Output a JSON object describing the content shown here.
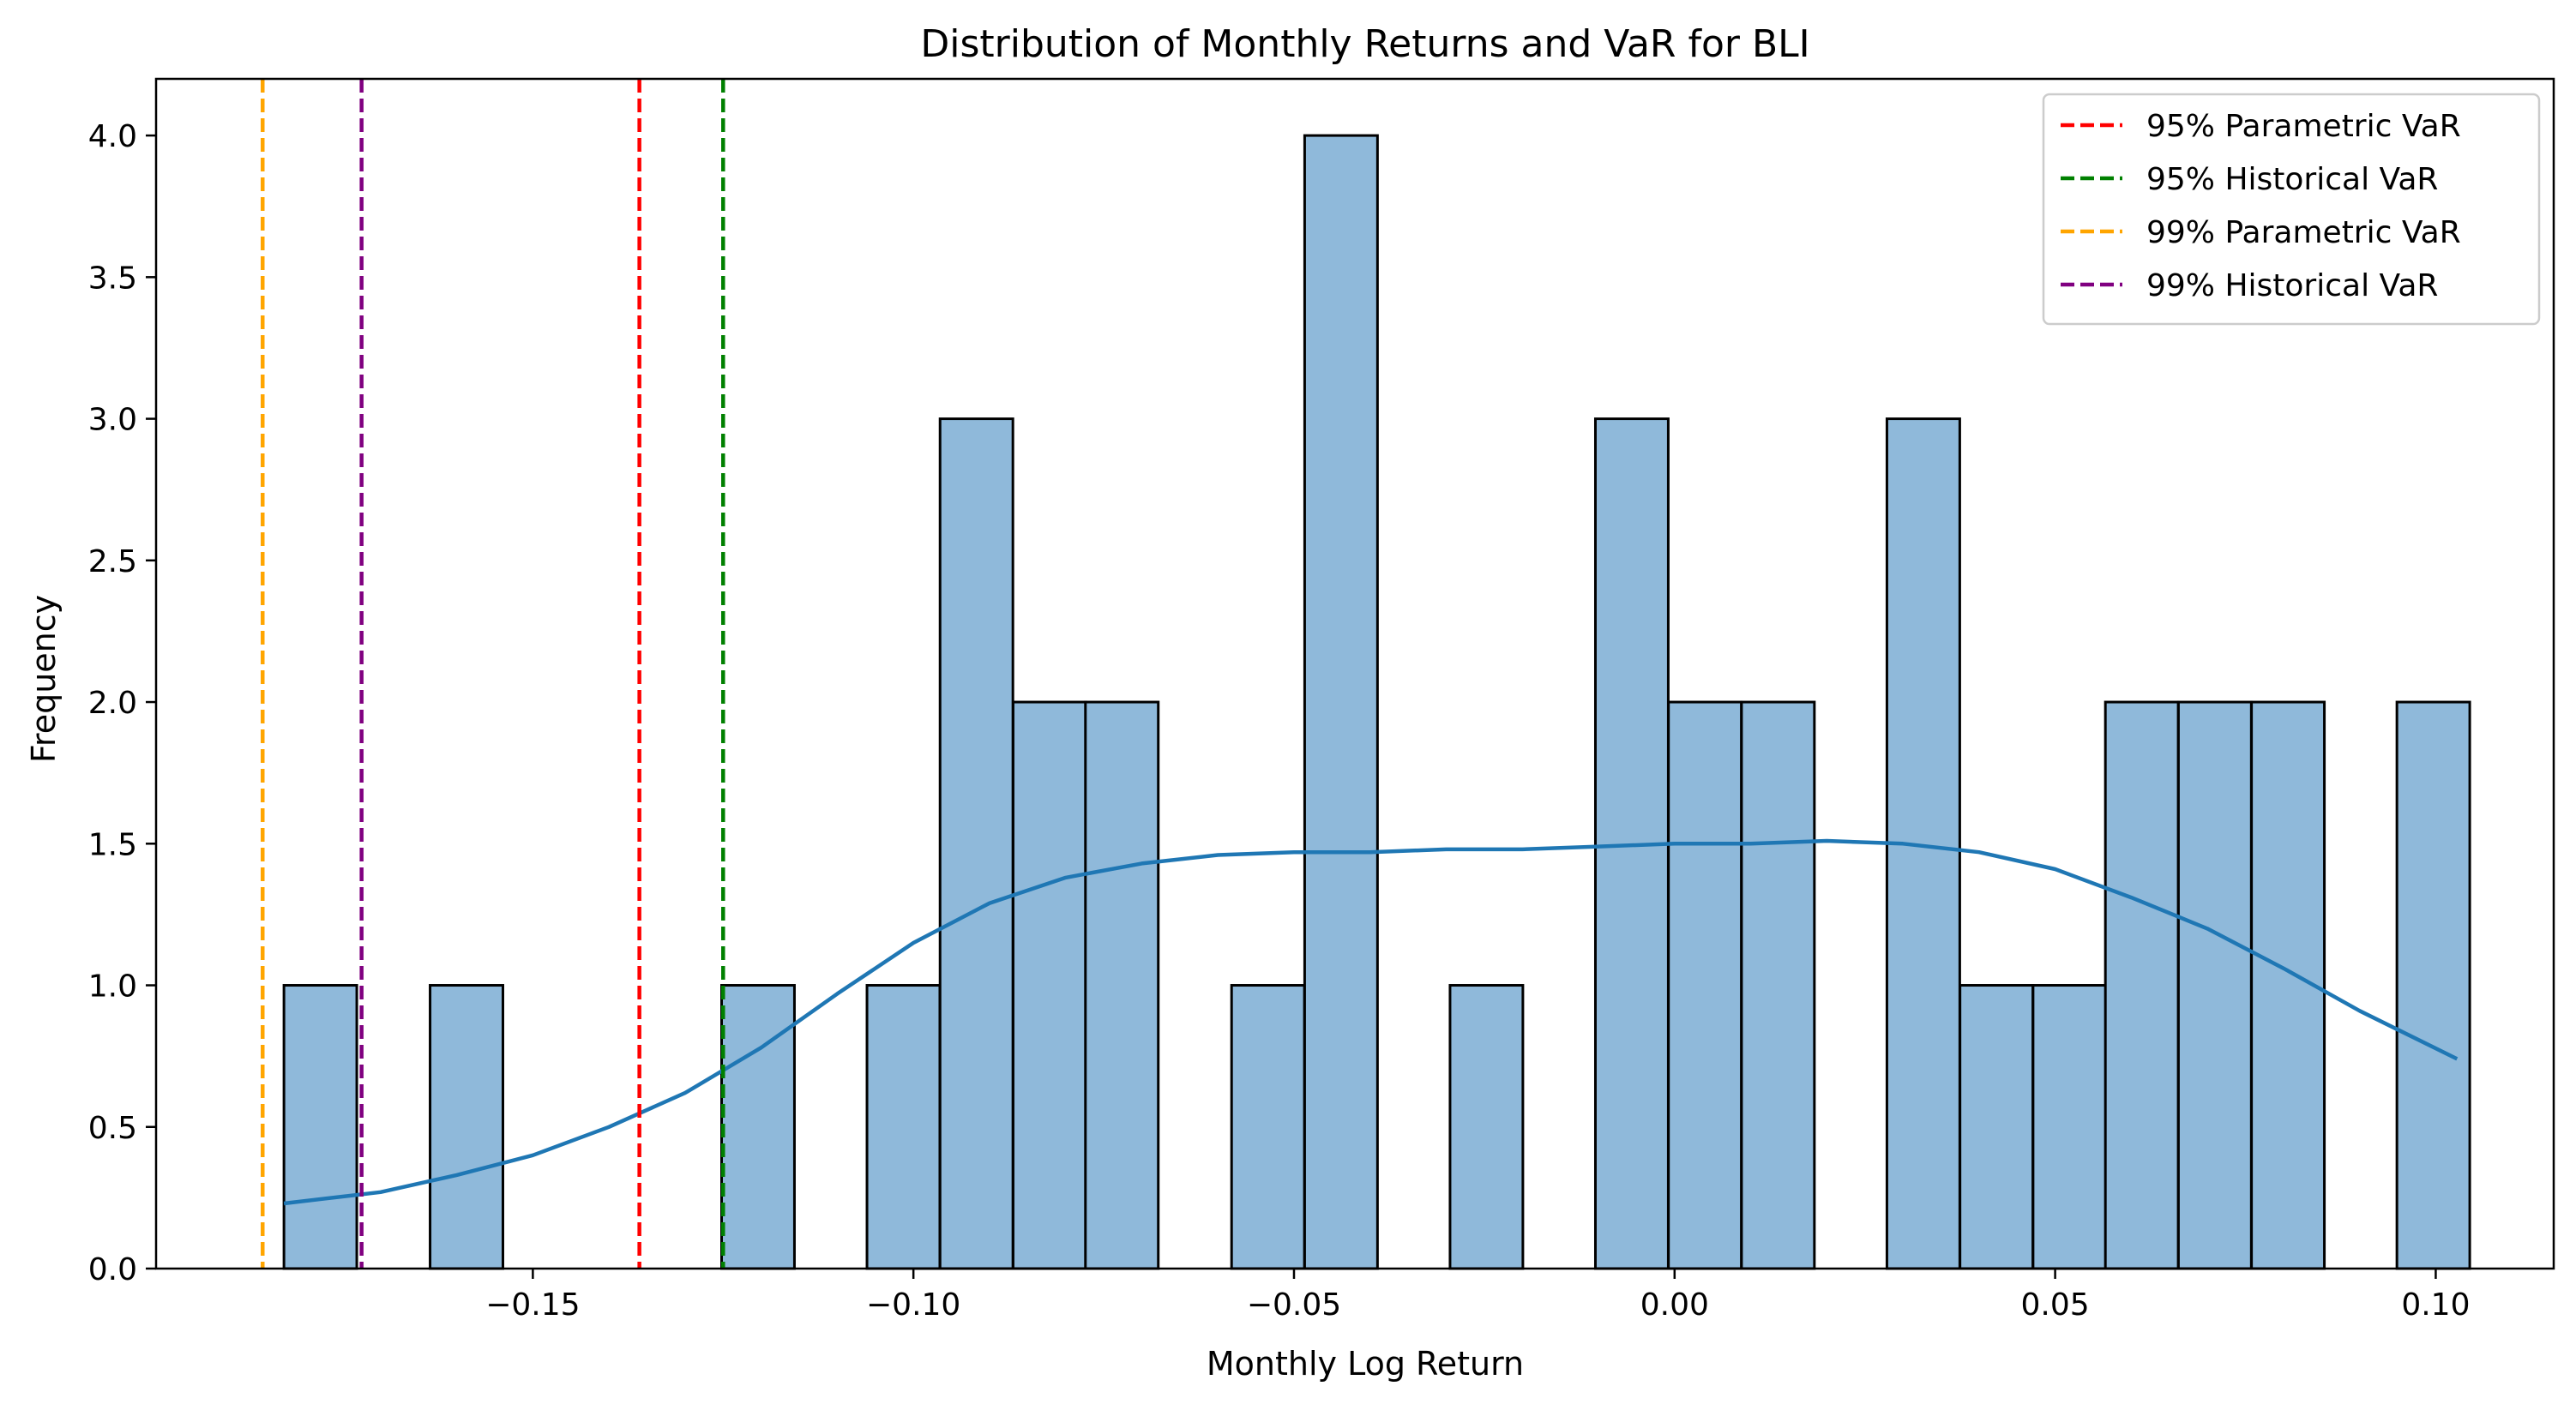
{
  "chart_data": {
    "type": "bar",
    "subtype": "histogram with kde",
    "title": "Distribution of Monthly Returns and VaR for BLI",
    "xlabel": "Monthly Log Return",
    "ylabel": "Frequency",
    "xlim": [
      -0.1995,
      0.1155
    ],
    "ylim": [
      0,
      4.2
    ],
    "x_ticks": [
      -0.15,
      -0.1,
      -0.05,
      0.0,
      0.05,
      0.1
    ],
    "x_tick_labels": [
      "−0.15",
      "−0.10",
      "−0.05",
      "0.00",
      "0.05",
      "0.10"
    ],
    "y_ticks": [
      0.0,
      0.5,
      1.0,
      1.5,
      2.0,
      2.5,
      3.0,
      3.5,
      4.0
    ],
    "y_tick_labels": [
      "0.0",
      "0.5",
      "1.0",
      "1.5",
      "2.0",
      "2.5",
      "3.0",
      "3.5",
      "4.0"
    ],
    "bin_width": 0.00957,
    "bins": [
      {
        "start": -0.1827,
        "count": 1
      },
      {
        "start": -0.1635,
        "count": 1
      },
      {
        "start": -0.1252,
        "count": 1
      },
      {
        "start": -0.1061,
        "count": 1
      },
      {
        "start": -0.0965,
        "count": 3
      },
      {
        "start": -0.0869,
        "count": 2
      },
      {
        "start": -0.0774,
        "count": 2
      },
      {
        "start": -0.0582,
        "count": 1
      },
      {
        "start": -0.0486,
        "count": 4
      },
      {
        "start": -0.0295,
        "count": 1
      },
      {
        "start": -0.0104,
        "count": 3
      },
      {
        "start": -0.0008,
        "count": 2
      },
      {
        "start": 0.0088,
        "count": 2
      },
      {
        "start": 0.0279,
        "count": 3
      },
      {
        "start": 0.0375,
        "count": 1
      },
      {
        "start": 0.0471,
        "count": 1
      },
      {
        "start": 0.0566,
        "count": 2
      },
      {
        "start": 0.0662,
        "count": 2
      },
      {
        "start": 0.0758,
        "count": 2
      },
      {
        "start": 0.0949,
        "count": 2
      }
    ],
    "bar_color": "#8fb9da",
    "bar_edge_color": "#000000",
    "kde": {
      "color": "#1f77b4",
      "x": [
        -0.1827,
        -0.17,
        -0.16,
        -0.15,
        -0.14,
        -0.13,
        -0.12,
        -0.11,
        -0.1,
        -0.09,
        -0.08,
        -0.07,
        -0.06,
        -0.05,
        -0.04,
        -0.03,
        -0.02,
        -0.01,
        0.0,
        0.01,
        0.02,
        0.03,
        0.04,
        0.05,
        0.06,
        0.07,
        0.08,
        0.09,
        0.1028
      ],
      "y": [
        0.23,
        0.27,
        0.33,
        0.4,
        0.5,
        0.62,
        0.78,
        0.97,
        1.15,
        1.29,
        1.38,
        1.43,
        1.46,
        1.47,
        1.47,
        1.48,
        1.48,
        1.49,
        1.5,
        1.5,
        1.51,
        1.5,
        1.47,
        1.41,
        1.31,
        1.2,
        1.06,
        0.91,
        0.74
      ]
    },
    "var_lines": [
      {
        "name": "95% Parametric VaR",
        "x": -0.136,
        "color": "#ff0000"
      },
      {
        "name": "95% Historical VaR",
        "x": -0.125,
        "color": "#008000"
      },
      {
        "name": "99% Parametric VaR",
        "x": -0.1855,
        "color": "#ffa500"
      },
      {
        "name": "99% Historical VaR",
        "x": -0.1725,
        "color": "#800080"
      }
    ],
    "legend_position": "top-right",
    "grid": false
  }
}
